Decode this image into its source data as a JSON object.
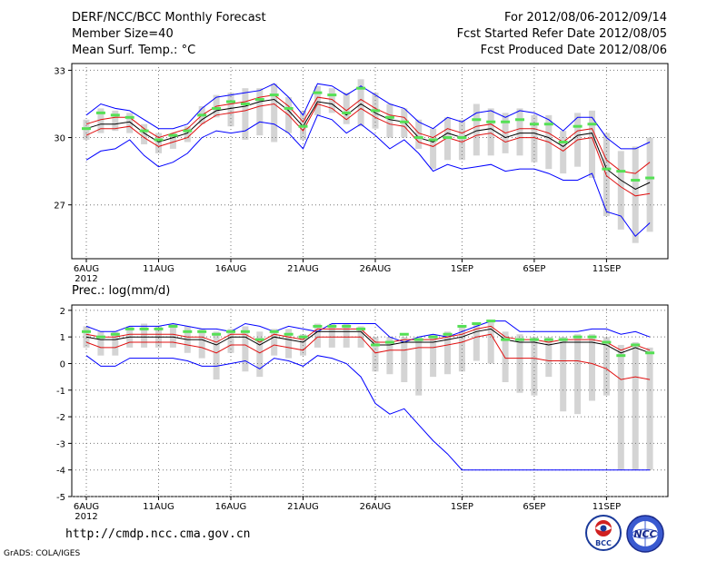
{
  "header": {
    "title": "DERF/NCC/BCC Monthly Forecast",
    "member_size": "Member Size=40",
    "variable": "Mean Surf. Temp.: °C",
    "period": "For 2012/08/06-2012/09/14",
    "started": "Fcst Started Refer Date 2012/08/05",
    "produced": "Fcst Produced Date 2012/08/06"
  },
  "footer": {
    "url": "http://cmdp.ncc.cma.gov.cn",
    "credit": "GrADS: COLA/IGES",
    "logo_bcc": "BCC",
    "logo_ncc": "NCC"
  },
  "colors": {
    "bar": "#d4d4d4",
    "max_min": "#0000ff",
    "mean": "#000000",
    "spread": "#e01010",
    "obs": "#55e055",
    "grid": "#777777"
  },
  "chart_data": [
    {
      "type": "line",
      "title": "Mean Surf. Temp.: °C",
      "x_tick_labels": [
        "6AUG",
        "11AUG",
        "16AUG",
        "21AUG",
        "26AUG",
        "1SEP",
        "6SEP",
        "11SEP"
      ],
      "year_label": "2012",
      "y_ticks": [
        27,
        30,
        33
      ],
      "ylim": [
        24.6,
        33.3
      ],
      "days": 40,
      "series": [
        {
          "name": "max",
          "values": [
            31.0,
            31.5,
            31.3,
            31.2,
            30.8,
            30.4,
            30.4,
            30.6,
            31.3,
            31.8,
            31.9,
            32.0,
            32.1,
            32.4,
            31.8,
            31.0,
            32.4,
            32.3,
            31.9,
            32.3,
            31.9,
            31.5,
            31.3,
            30.7,
            30.4,
            30.9,
            30.7,
            31.1,
            31.2,
            30.9,
            31.2,
            31.1,
            30.8,
            30.3,
            30.9,
            30.9,
            30.0,
            29.5,
            29.5,
            29.8
          ]
        },
        {
          "name": "ens_mean",
          "values": [
            30.4,
            30.6,
            30.6,
            30.7,
            30.2,
            29.8,
            30.0,
            30.2,
            30.8,
            31.2,
            31.3,
            31.4,
            31.6,
            31.7,
            31.2,
            30.5,
            31.6,
            31.5,
            31.0,
            31.5,
            31.1,
            30.8,
            30.7,
            30.0,
            29.8,
            30.2,
            30.0,
            30.3,
            30.4,
            30.0,
            30.2,
            30.2,
            30.0,
            29.6,
            30.1,
            30.2,
            28.6,
            28.1,
            27.7,
            28.0
          ]
        },
        {
          "name": "upper",
          "values": [
            30.6,
            30.8,
            30.9,
            30.9,
            30.4,
            30.0,
            30.2,
            30.4,
            31.0,
            31.4,
            31.5,
            31.6,
            31.8,
            31.9,
            31.4,
            30.7,
            31.8,
            31.7,
            31.2,
            31.7,
            31.3,
            31.0,
            30.9,
            30.2,
            30.0,
            30.4,
            30.2,
            30.5,
            30.6,
            30.2,
            30.4,
            30.4,
            30.2,
            29.8,
            30.3,
            30.4,
            29.0,
            28.5,
            28.4,
            28.9
          ]
        },
        {
          "name": "lower",
          "values": [
            30.1,
            30.4,
            30.4,
            30.5,
            30.0,
            29.6,
            29.8,
            30.0,
            30.6,
            31.0,
            31.1,
            31.2,
            31.4,
            31.5,
            31.0,
            30.3,
            31.5,
            31.3,
            30.8,
            31.3,
            30.9,
            30.6,
            30.5,
            29.8,
            29.6,
            30.0,
            29.8,
            30.1,
            30.2,
            29.8,
            30.0,
            30.0,
            29.8,
            29.4,
            29.9,
            30.0,
            28.3,
            27.8,
            27.4,
            27.5
          ]
        },
        {
          "name": "min",
          "values": [
            29.0,
            29.4,
            29.5,
            29.9,
            29.2,
            28.7,
            28.9,
            29.3,
            30.0,
            30.3,
            30.2,
            30.3,
            30.7,
            30.6,
            30.2,
            29.5,
            31.0,
            30.8,
            30.2,
            30.6,
            30.1,
            29.5,
            29.9,
            29.3,
            28.5,
            28.8,
            28.6,
            28.7,
            28.8,
            28.5,
            28.6,
            28.6,
            28.4,
            28.1,
            28.1,
            28.4,
            26.7,
            26.5,
            25.6,
            26.2
          ]
        },
        {
          "name": "obs",
          "values": [
            30.4,
            31.1,
            31.0,
            30.9,
            30.3,
            29.9,
            30.1,
            30.3,
            31.0,
            31.3,
            31.6,
            31.5,
            31.7,
            31.9,
            31.3,
            30.5,
            32.0,
            31.9,
            31.1,
            32.2,
            31.2,
            30.9,
            30.7,
            30.0,
            29.9,
            30.0,
            30.0,
            30.8,
            30.7,
            30.7,
            30.8,
            30.6,
            30.6,
            29.8,
            30.5,
            30.6,
            28.6,
            28.5,
            28.1,
            28.2
          ]
        },
        {
          "name": "bar_top",
          "values": [
            30.8,
            31.3,
            31.2,
            31.1,
            30.6,
            30.2,
            30.2,
            30.5,
            31.4,
            31.9,
            32.0,
            32.2,
            32.2,
            32.4,
            31.8,
            31.2,
            32.3,
            32.2,
            32.0,
            32.6,
            32.0,
            31.5,
            31.3,
            30.8,
            30.4,
            30.9,
            30.8,
            31.5,
            31.3,
            31.1,
            31.3,
            31.0,
            31.0,
            30.3,
            31.1,
            31.2,
            30.2,
            29.4,
            29.6,
            30.0
          ]
        },
        {
          "name": "bar_bottom",
          "values": [
            29.9,
            30.2,
            30.3,
            30.2,
            29.7,
            29.3,
            29.5,
            29.8,
            30.6,
            30.9,
            30.5,
            29.9,
            30.1,
            29.8,
            30.2,
            29.9,
            31.0,
            31.1,
            30.6,
            30.5,
            30.4,
            30.0,
            30.0,
            29.5,
            28.6,
            29.0,
            29.0,
            29.2,
            29.2,
            29.3,
            29.2,
            28.9,
            28.6,
            28.4,
            28.7,
            28.2,
            26.5,
            25.9,
            25.3,
            25.8
          ]
        }
      ]
    },
    {
      "type": "line",
      "title": "Prec.: log(mm/d)",
      "x_tick_labels": [
        "6AUG",
        "11AUG",
        "16AUG",
        "21AUG",
        "26AUG",
        "1SEP",
        "6SEP",
        "11SEP"
      ],
      "year_label": "2012",
      "y_ticks": [
        -5,
        -4,
        -3,
        -2,
        -1,
        0,
        1,
        2
      ],
      "ylim": [
        -5,
        2.2
      ],
      "days": 40,
      "series": [
        {
          "name": "max",
          "values": [
            1.4,
            1.2,
            1.2,
            1.4,
            1.4,
            1.4,
            1.5,
            1.4,
            1.3,
            1.3,
            1.2,
            1.5,
            1.4,
            1.2,
            1.4,
            1.3,
            1.2,
            1.5,
            1.5,
            1.5,
            1.5,
            1.0,
            0.8,
            1.0,
            1.1,
            1.0,
            1.2,
            1.4,
            1.6,
            1.6,
            1.2,
            1.2,
            1.2,
            1.2,
            1.2,
            1.3,
            1.3,
            1.1,
            1.2,
            1.0
          ]
        },
        {
          "name": "ens_mean",
          "values": [
            1.0,
            0.9,
            0.9,
            1.0,
            1.0,
            1.0,
            1.0,
            0.9,
            0.9,
            0.7,
            1.0,
            1.0,
            0.7,
            1.0,
            0.9,
            0.8,
            1.2,
            1.2,
            1.2,
            1.2,
            0.7,
            0.7,
            0.8,
            0.8,
            0.8,
            0.9,
            1.0,
            1.2,
            1.3,
            0.9,
            0.8,
            0.8,
            0.7,
            0.8,
            0.8,
            0.8,
            0.7,
            0.4,
            0.6,
            0.4
          ]
        },
        {
          "name": "upper",
          "values": [
            1.1,
            1.0,
            1.0,
            1.1,
            1.1,
            1.1,
            1.1,
            1.0,
            1.0,
            0.8,
            1.1,
            1.1,
            0.8,
            1.1,
            1.0,
            0.9,
            1.3,
            1.3,
            1.3,
            1.3,
            0.8,
            0.8,
            0.9,
            0.9,
            0.9,
            1.0,
            1.1,
            1.3,
            1.4,
            1.0,
            0.9,
            0.9,
            0.8,
            0.9,
            0.9,
            0.9,
            0.8,
            0.5,
            0.7,
            0.5
          ]
        },
        {
          "name": "lower",
          "values": [
            0.8,
            0.6,
            0.6,
            0.8,
            0.8,
            0.8,
            0.8,
            0.7,
            0.6,
            0.4,
            0.7,
            0.7,
            0.4,
            0.7,
            0.6,
            0.5,
            1.0,
            1.0,
            1.0,
            1.0,
            0.4,
            0.5,
            0.5,
            0.6,
            0.6,
            0.7,
            0.8,
            1.0,
            1.1,
            0.2,
            0.2,
            0.2,
            0.1,
            0.1,
            0.1,
            0.0,
            -0.2,
            -0.6,
            -0.5,
            -0.6
          ]
        },
        {
          "name": "min",
          "values": [
            0.3,
            -0.1,
            -0.1,
            0.2,
            0.2,
            0.2,
            0.2,
            0.1,
            -0.1,
            -0.1,
            0.0,
            0.1,
            -0.2,
            0.2,
            0.1,
            -0.1,
            0.3,
            0.2,
            0.0,
            -0.5,
            -1.5,
            -1.9,
            -1.7,
            -2.3,
            -2.9,
            -3.4,
            -4.0,
            -4.0,
            -4.0,
            -4.0,
            -4.0,
            -4.0,
            -4.0,
            -4.0,
            -4.0,
            -4.0,
            -4.0,
            -4.0,
            -4.0,
            -4.0
          ]
        },
        {
          "name": "obs",
          "values": [
            1.2,
            1.0,
            1.1,
            1.3,
            1.3,
            1.3,
            1.4,
            1.2,
            1.2,
            1.1,
            1.2,
            1.2,
            0.9,
            1.2,
            1.1,
            1.0,
            1.4,
            1.4,
            1.4,
            1.3,
            0.7,
            0.8,
            1.1,
            0.9,
            1.0,
            1.1,
            1.4,
            1.5,
            1.6,
            0.9,
            0.9,
            0.9,
            0.9,
            0.9,
            1.0,
            1.0,
            0.8,
            0.3,
            0.7,
            0.4
          ]
        },
        {
          "name": "bar_top",
          "values": [
            1.4,
            1.2,
            1.2,
            1.4,
            1.5,
            1.4,
            1.5,
            1.4,
            1.3,
            1.2,
            1.3,
            1.4,
            1.2,
            1.3,
            1.3,
            1.1,
            1.5,
            1.5,
            1.5,
            1.4,
            1.0,
            1.0,
            1.0,
            1.0,
            1.1,
            1.2,
            1.4,
            1.5,
            1.6,
            1.2,
            1.1,
            1.0,
            1.0,
            1.0,
            1.1,
            1.1,
            1.0,
            0.7,
            0.8,
            0.6
          ]
        },
        {
          "name": "bar_bottom",
          "values": [
            0.6,
            0.3,
            0.3,
            0.6,
            0.6,
            0.6,
            0.6,
            0.4,
            0.2,
            -0.6,
            0.4,
            -0.3,
            -0.5,
            0.3,
            0.2,
            0.3,
            0.6,
            0.6,
            0.6,
            0.6,
            -0.3,
            -0.4,
            -0.7,
            -1.2,
            -0.5,
            -0.4,
            -0.3,
            0.1,
            0.0,
            -0.7,
            -1.1,
            -1.2,
            -0.5,
            -1.8,
            -1.9,
            -1.4,
            -1.2,
            -4.0,
            -4.0,
            -4.0
          ]
        }
      ]
    }
  ]
}
